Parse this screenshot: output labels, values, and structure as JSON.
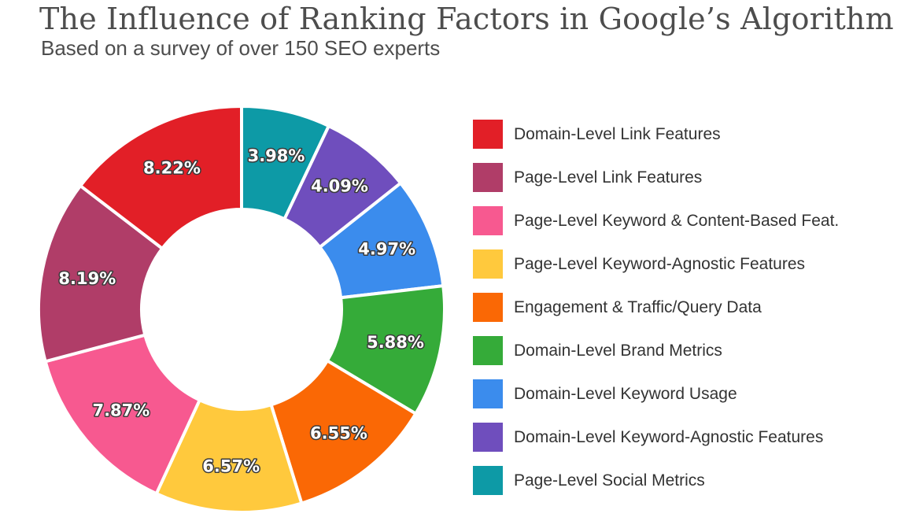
{
  "header": {
    "title": "The Influence of Ranking Factors in Google’s Algorithm",
    "subtitle": "Based on a survey of over 150 SEO experts"
  },
  "chart_data": {
    "type": "pie",
    "variant": "donut",
    "title": "The Influence of Ranking Factors in Google’s Algorithm",
    "subtitle": "Based on a survey of over 150 SEO experts",
    "legend_position": "right",
    "start_category": "Page-Level Social Metrics",
    "direction": "clockwise",
    "categories": [
      "Page-Level Social Metrics",
      "Domain-Level Keyword-Agnostic Features",
      "Domain-Level Keyword Usage",
      "Domain-Level Brand Metrics",
      "Engagement & Traffic/Query Data",
      "Page-Level Keyword-Agnostic Features",
      "Page-Level Keyword & Content-Based Feat.",
      "Page-Level Link Features",
      "Domain-Level Link Features"
    ],
    "values": [
      3.98,
      4.09,
      4.97,
      5.88,
      6.55,
      6.57,
      7.87,
      8.19,
      8.22
    ],
    "data_labels": [
      "3.98%",
      "4.09%",
      "4.97%",
      "5.88%",
      "6.55%",
      "6.57%",
      "7.87%",
      "8.19%",
      "8.22%"
    ],
    "colors": [
      "#0d9aa6",
      "#6f4ebd",
      "#3b8ced",
      "#35ab39",
      "#fa6805",
      "#ffc93d",
      "#f75990",
      "#b03d68",
      "#e21f27"
    ],
    "legend": [
      {
        "label": "Domain-Level Link Features",
        "color": "#e21f27"
      },
      {
        "label": "Page-Level Link Features",
        "color": "#b03d68"
      },
      {
        "label": "Page-Level Keyword & Content-Based Feat.",
        "color": "#f75990"
      },
      {
        "label": "Page-Level Keyword-Agnostic Features",
        "color": "#ffc93d"
      },
      {
        "label": "Engagement & Traffic/Query Data",
        "color": "#fa6805"
      },
      {
        "label": "Domain-Level Brand Metrics",
        "color": "#35ab39"
      },
      {
        "label": "Domain-Level Keyword Usage",
        "color": "#3b8ced"
      },
      {
        "label": "Domain-Level Keyword-Agnostic Features",
        "color": "#6f4ebd"
      },
      {
        "label": "Page-Level Social Metrics",
        "color": "#0d9aa6"
      }
    ]
  }
}
